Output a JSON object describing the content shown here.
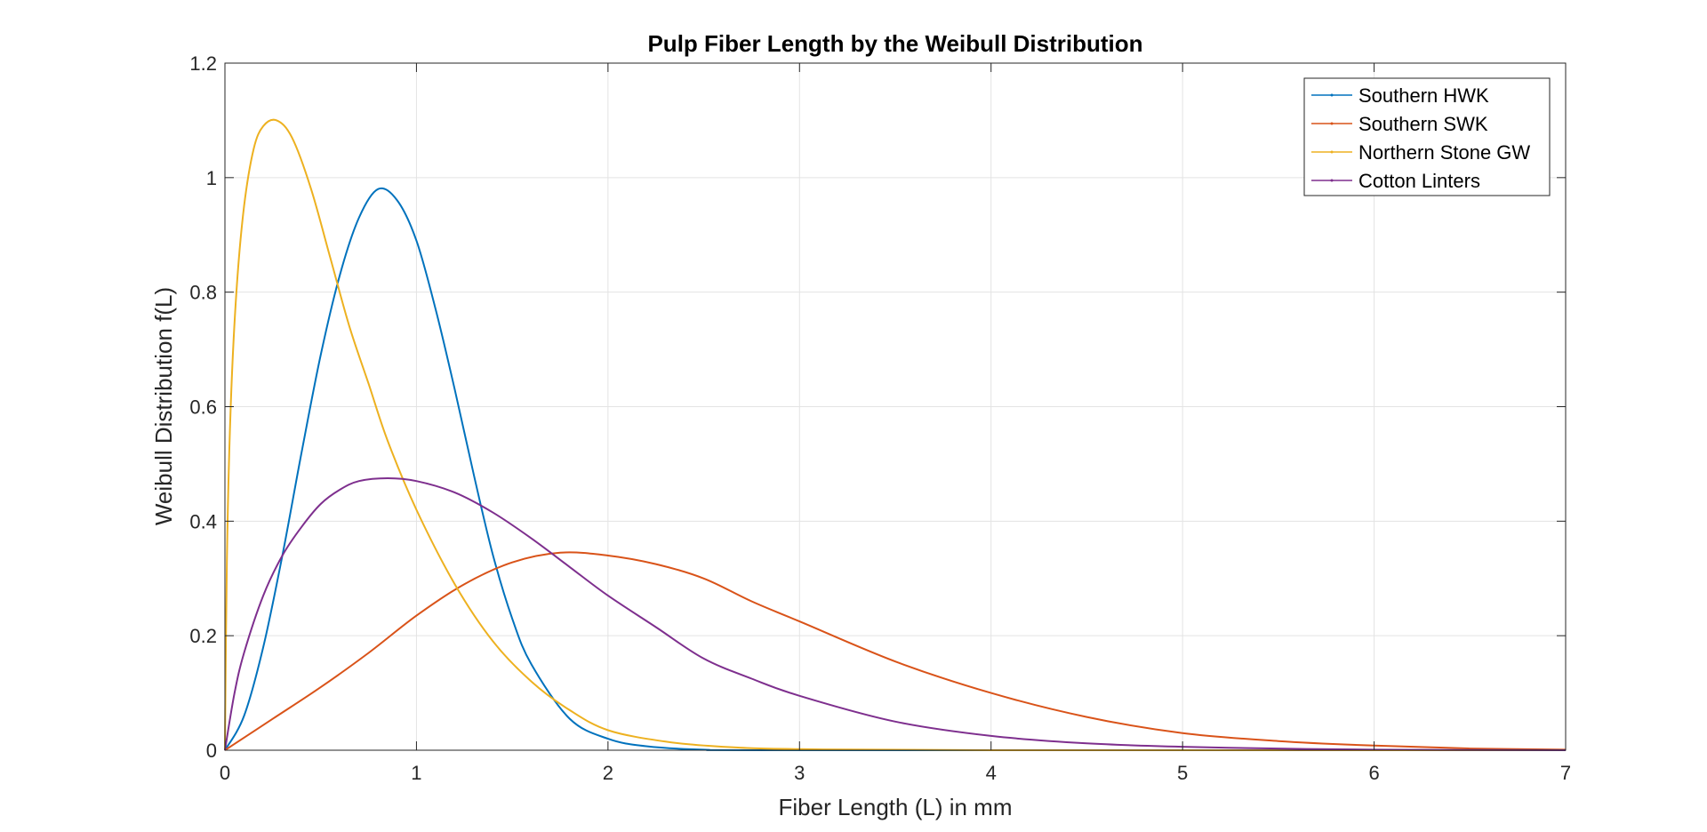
{
  "chart_data": {
    "type": "line",
    "title": "Pulp Fiber Length by the Weibull Distribution",
    "xlabel": "Fiber Length (L) in mm",
    "ylabel": "Weibull Distribution f(L)",
    "xlim": [
      0,
      7
    ],
    "ylim": [
      0,
      1.2
    ],
    "xticks": [
      "0",
      "1",
      "2",
      "3",
      "4",
      "5",
      "6",
      "7"
    ],
    "yticks": [
      "0",
      "0.2",
      "0.4",
      "0.6",
      "0.8",
      "1",
      "1.2"
    ],
    "grid": true,
    "legend_position": "top-right",
    "series": [
      {
        "name": "Southern HWK",
        "color": "#0072BD",
        "points": [
          [
            0,
            0
          ],
          [
            0.1,
            0.06
          ],
          [
            0.2,
            0.18
          ],
          [
            0.3,
            0.34
          ],
          [
            0.4,
            0.52
          ],
          [
            0.5,
            0.69
          ],
          [
            0.6,
            0.83
          ],
          [
            0.7,
            0.93
          ],
          [
            0.8,
            0.98
          ],
          [
            0.9,
            0.96
          ],
          [
            1.0,
            0.89
          ],
          [
            1.1,
            0.77
          ],
          [
            1.2,
            0.63
          ],
          [
            1.3,
            0.48
          ],
          [
            1.4,
            0.34
          ],
          [
            1.5,
            0.23
          ],
          [
            1.6,
            0.15
          ],
          [
            1.8,
            0.055
          ],
          [
            2.0,
            0.02
          ],
          [
            2.2,
            0.007
          ],
          [
            2.5,
            0.001
          ],
          [
            3.0,
            0
          ],
          [
            7.0,
            0
          ]
        ]
      },
      {
        "name": "Southern SWK",
        "color": "#D95319",
        "points": [
          [
            0,
            0
          ],
          [
            0.25,
            0.055
          ],
          [
            0.5,
            0.11
          ],
          [
            0.75,
            0.17
          ],
          [
            1.0,
            0.235
          ],
          [
            1.25,
            0.29
          ],
          [
            1.5,
            0.328
          ],
          [
            1.75,
            0.345
          ],
          [
            2.0,
            0.34
          ],
          [
            2.25,
            0.325
          ],
          [
            2.5,
            0.3
          ],
          [
            2.75,
            0.26
          ],
          [
            3.0,
            0.225
          ],
          [
            3.5,
            0.155
          ],
          [
            4.0,
            0.1
          ],
          [
            4.5,
            0.058
          ],
          [
            5.0,
            0.03
          ],
          [
            5.5,
            0.016
          ],
          [
            6.0,
            0.008
          ],
          [
            6.5,
            0.003
          ],
          [
            7.0,
            0.001
          ]
        ]
      },
      {
        "name": "Northern Stone GW",
        "color": "#EDB120",
        "points": [
          [
            0,
            0
          ],
          [
            0.01,
            0.33
          ],
          [
            0.03,
            0.6
          ],
          [
            0.06,
            0.8
          ],
          [
            0.1,
            0.95
          ],
          [
            0.15,
            1.05
          ],
          [
            0.2,
            1.09
          ],
          [
            0.27,
            1.1
          ],
          [
            0.35,
            1.07
          ],
          [
            0.45,
            0.98
          ],
          [
            0.55,
            0.86
          ],
          [
            0.65,
            0.74
          ],
          [
            0.75,
            0.64
          ],
          [
            0.85,
            0.54
          ],
          [
            1.0,
            0.42
          ],
          [
            1.2,
            0.29
          ],
          [
            1.4,
            0.19
          ],
          [
            1.6,
            0.12
          ],
          [
            1.8,
            0.07
          ],
          [
            2.0,
            0.035
          ],
          [
            2.3,
            0.015
          ],
          [
            2.6,
            0.006
          ],
          [
            3.0,
            0.002
          ],
          [
            4.0,
            0
          ],
          [
            7.0,
            0
          ]
        ]
      },
      {
        "name": "Cotton Linters",
        "color": "#7E2F8E",
        "points": [
          [
            0,
            0
          ],
          [
            0.05,
            0.1
          ],
          [
            0.1,
            0.17
          ],
          [
            0.2,
            0.27
          ],
          [
            0.3,
            0.34
          ],
          [
            0.4,
            0.39
          ],
          [
            0.5,
            0.43
          ],
          [
            0.6,
            0.455
          ],
          [
            0.7,
            0.47
          ],
          [
            0.85,
            0.475
          ],
          [
            1.0,
            0.47
          ],
          [
            1.2,
            0.45
          ],
          [
            1.4,
            0.415
          ],
          [
            1.6,
            0.37
          ],
          [
            1.8,
            0.32
          ],
          [
            2.0,
            0.27
          ],
          [
            2.25,
            0.215
          ],
          [
            2.5,
            0.16
          ],
          [
            2.75,
            0.125
          ],
          [
            3.0,
            0.095
          ],
          [
            3.5,
            0.05
          ],
          [
            4.0,
            0.025
          ],
          [
            4.5,
            0.012
          ],
          [
            5.0,
            0.006
          ],
          [
            5.5,
            0.003
          ],
          [
            6.0,
            0.001
          ],
          [
            7.0,
            0
          ]
        ]
      }
    ]
  }
}
